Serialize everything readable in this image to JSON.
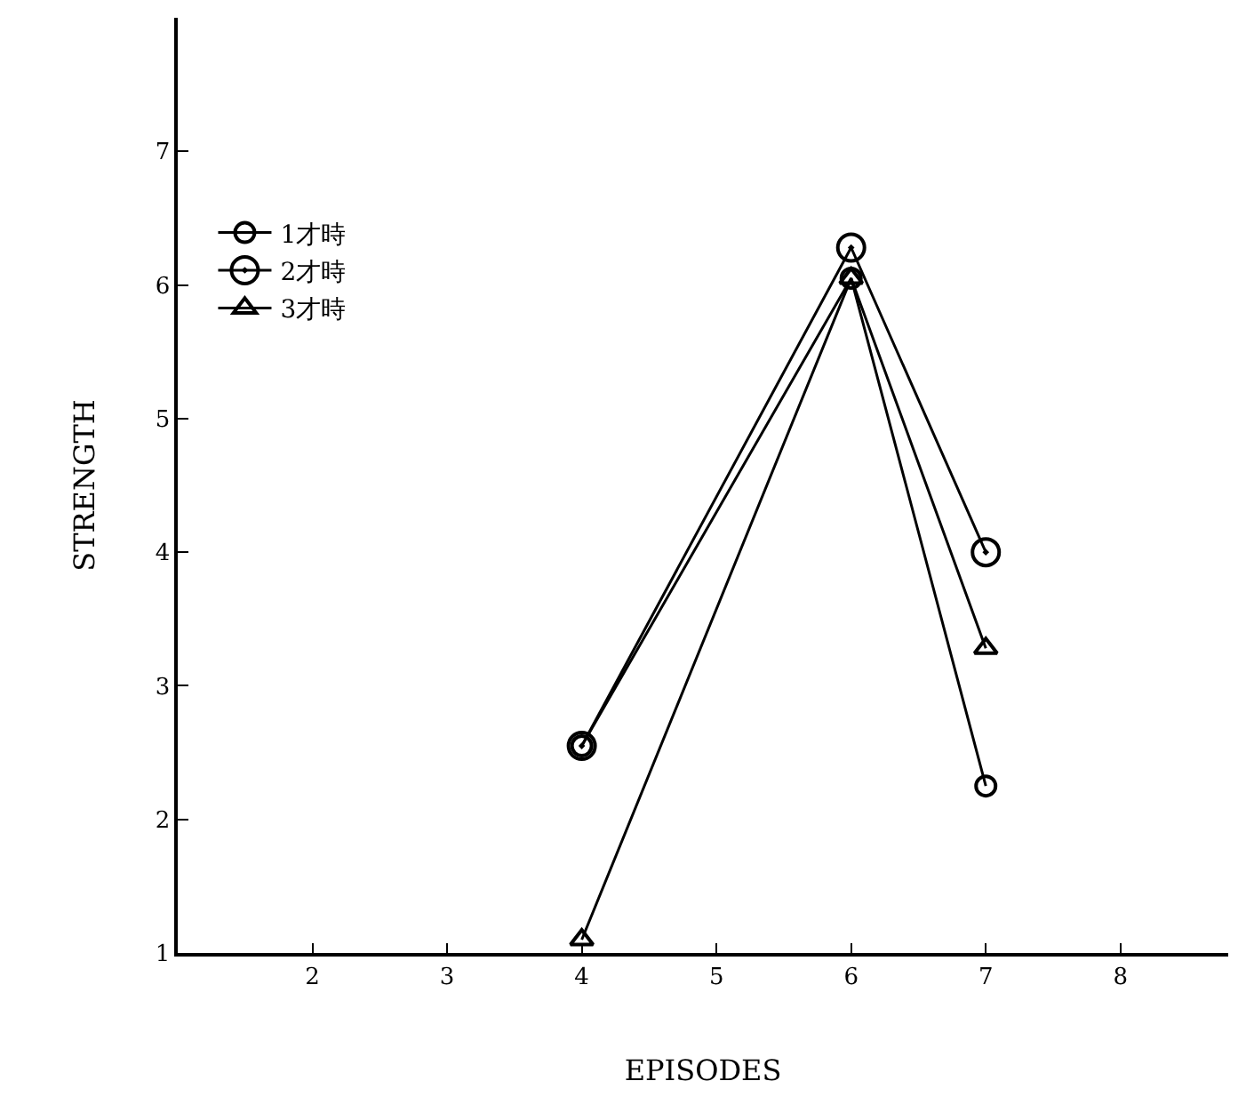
{
  "chart_data": {
    "type": "line",
    "xlabel": "EPISODES",
    "ylabel": "STRENGTH",
    "x": [
      4,
      6,
      7
    ],
    "series": [
      {
        "name": "1才時",
        "color": "#000000",
        "marker": "circle",
        "values": [
          2.55,
          6.05,
          2.25
        ]
      },
      {
        "name": "2才時",
        "color": "#000000",
        "marker": "double circle",
        "values": [
          2.55,
          6.28,
          4.0
        ]
      },
      {
        "name": "3才時",
        "color": "#000000",
        "marker": "triangle",
        "values": [
          1.1,
          6.05,
          3.28
        ]
      }
    ],
    "xlim": [
      1,
      8.8
    ],
    "ylim": [
      1,
      8
    ],
    "xticks": [
      2,
      3,
      4,
      5,
      6,
      7,
      8
    ],
    "yticks": [
      1,
      2,
      3,
      4,
      5,
      6,
      7
    ],
    "legend": "top left",
    "line_style": "solid"
  }
}
